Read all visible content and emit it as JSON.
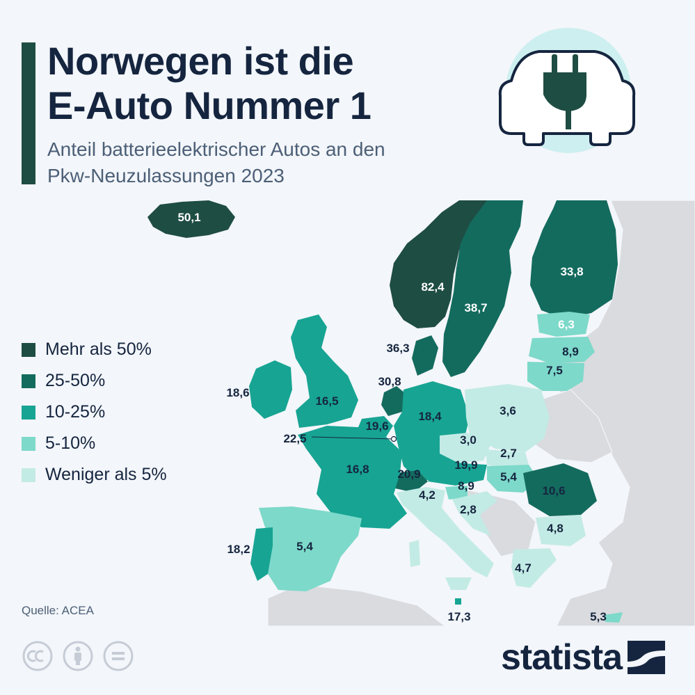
{
  "title_lines": [
    "Norwegen ist die",
    "E-Auto Nummer 1"
  ],
  "subtitle_lines": [
    "Anteil batterieelektrischer Autos an den",
    "Pkw-Neuzulassungen 2023"
  ],
  "source": "Quelle: ACEA",
  "brand": "statista",
  "icon": "electric-car-plug-icon",
  "legend": [
    {
      "label": "Mehr als 50%",
      "color": "#1e4d43"
    },
    {
      "label": "25-50%",
      "color": "#136b5e"
    },
    {
      "label": "10-25%",
      "color": "#17a493"
    },
    {
      "label": "5-10%",
      "color": "#7dd9ca"
    },
    {
      "label": "Weniger als 5%",
      "color": "#c3ebe5"
    }
  ],
  "chart_data": {
    "type": "choropleth",
    "unit": "%",
    "values": [
      {
        "value": "50,1"
      },
      {
        "value": "82,4"
      },
      {
        "value": "38,7"
      },
      {
        "value": "33,8"
      },
      {
        "value": "36,3"
      },
      {
        "value": "6,3"
      },
      {
        "value": "8,9"
      },
      {
        "value": "7,5"
      },
      {
        "value": "18,6"
      },
      {
        "value": "16,5"
      },
      {
        "value": "30,8"
      },
      {
        "value": "19,6"
      },
      {
        "value": "22,5"
      },
      {
        "value": "18,4"
      },
      {
        "value": "3,6"
      },
      {
        "value": "3,0"
      },
      {
        "value": "2,7"
      },
      {
        "value": "16,8"
      },
      {
        "value": "20,9"
      },
      {
        "value": "19,9"
      },
      {
        "value": "5,4"
      },
      {
        "value": "10,6"
      },
      {
        "value": "4,2"
      },
      {
        "value": "8,9"
      },
      {
        "value": "2,8"
      },
      {
        "value": "4,8"
      },
      {
        "value": "18,2"
      },
      {
        "value": "5,4"
      },
      {
        "value": "4,7"
      },
      {
        "value": "17,3"
      },
      {
        "value": "5,3"
      }
    ]
  }
}
